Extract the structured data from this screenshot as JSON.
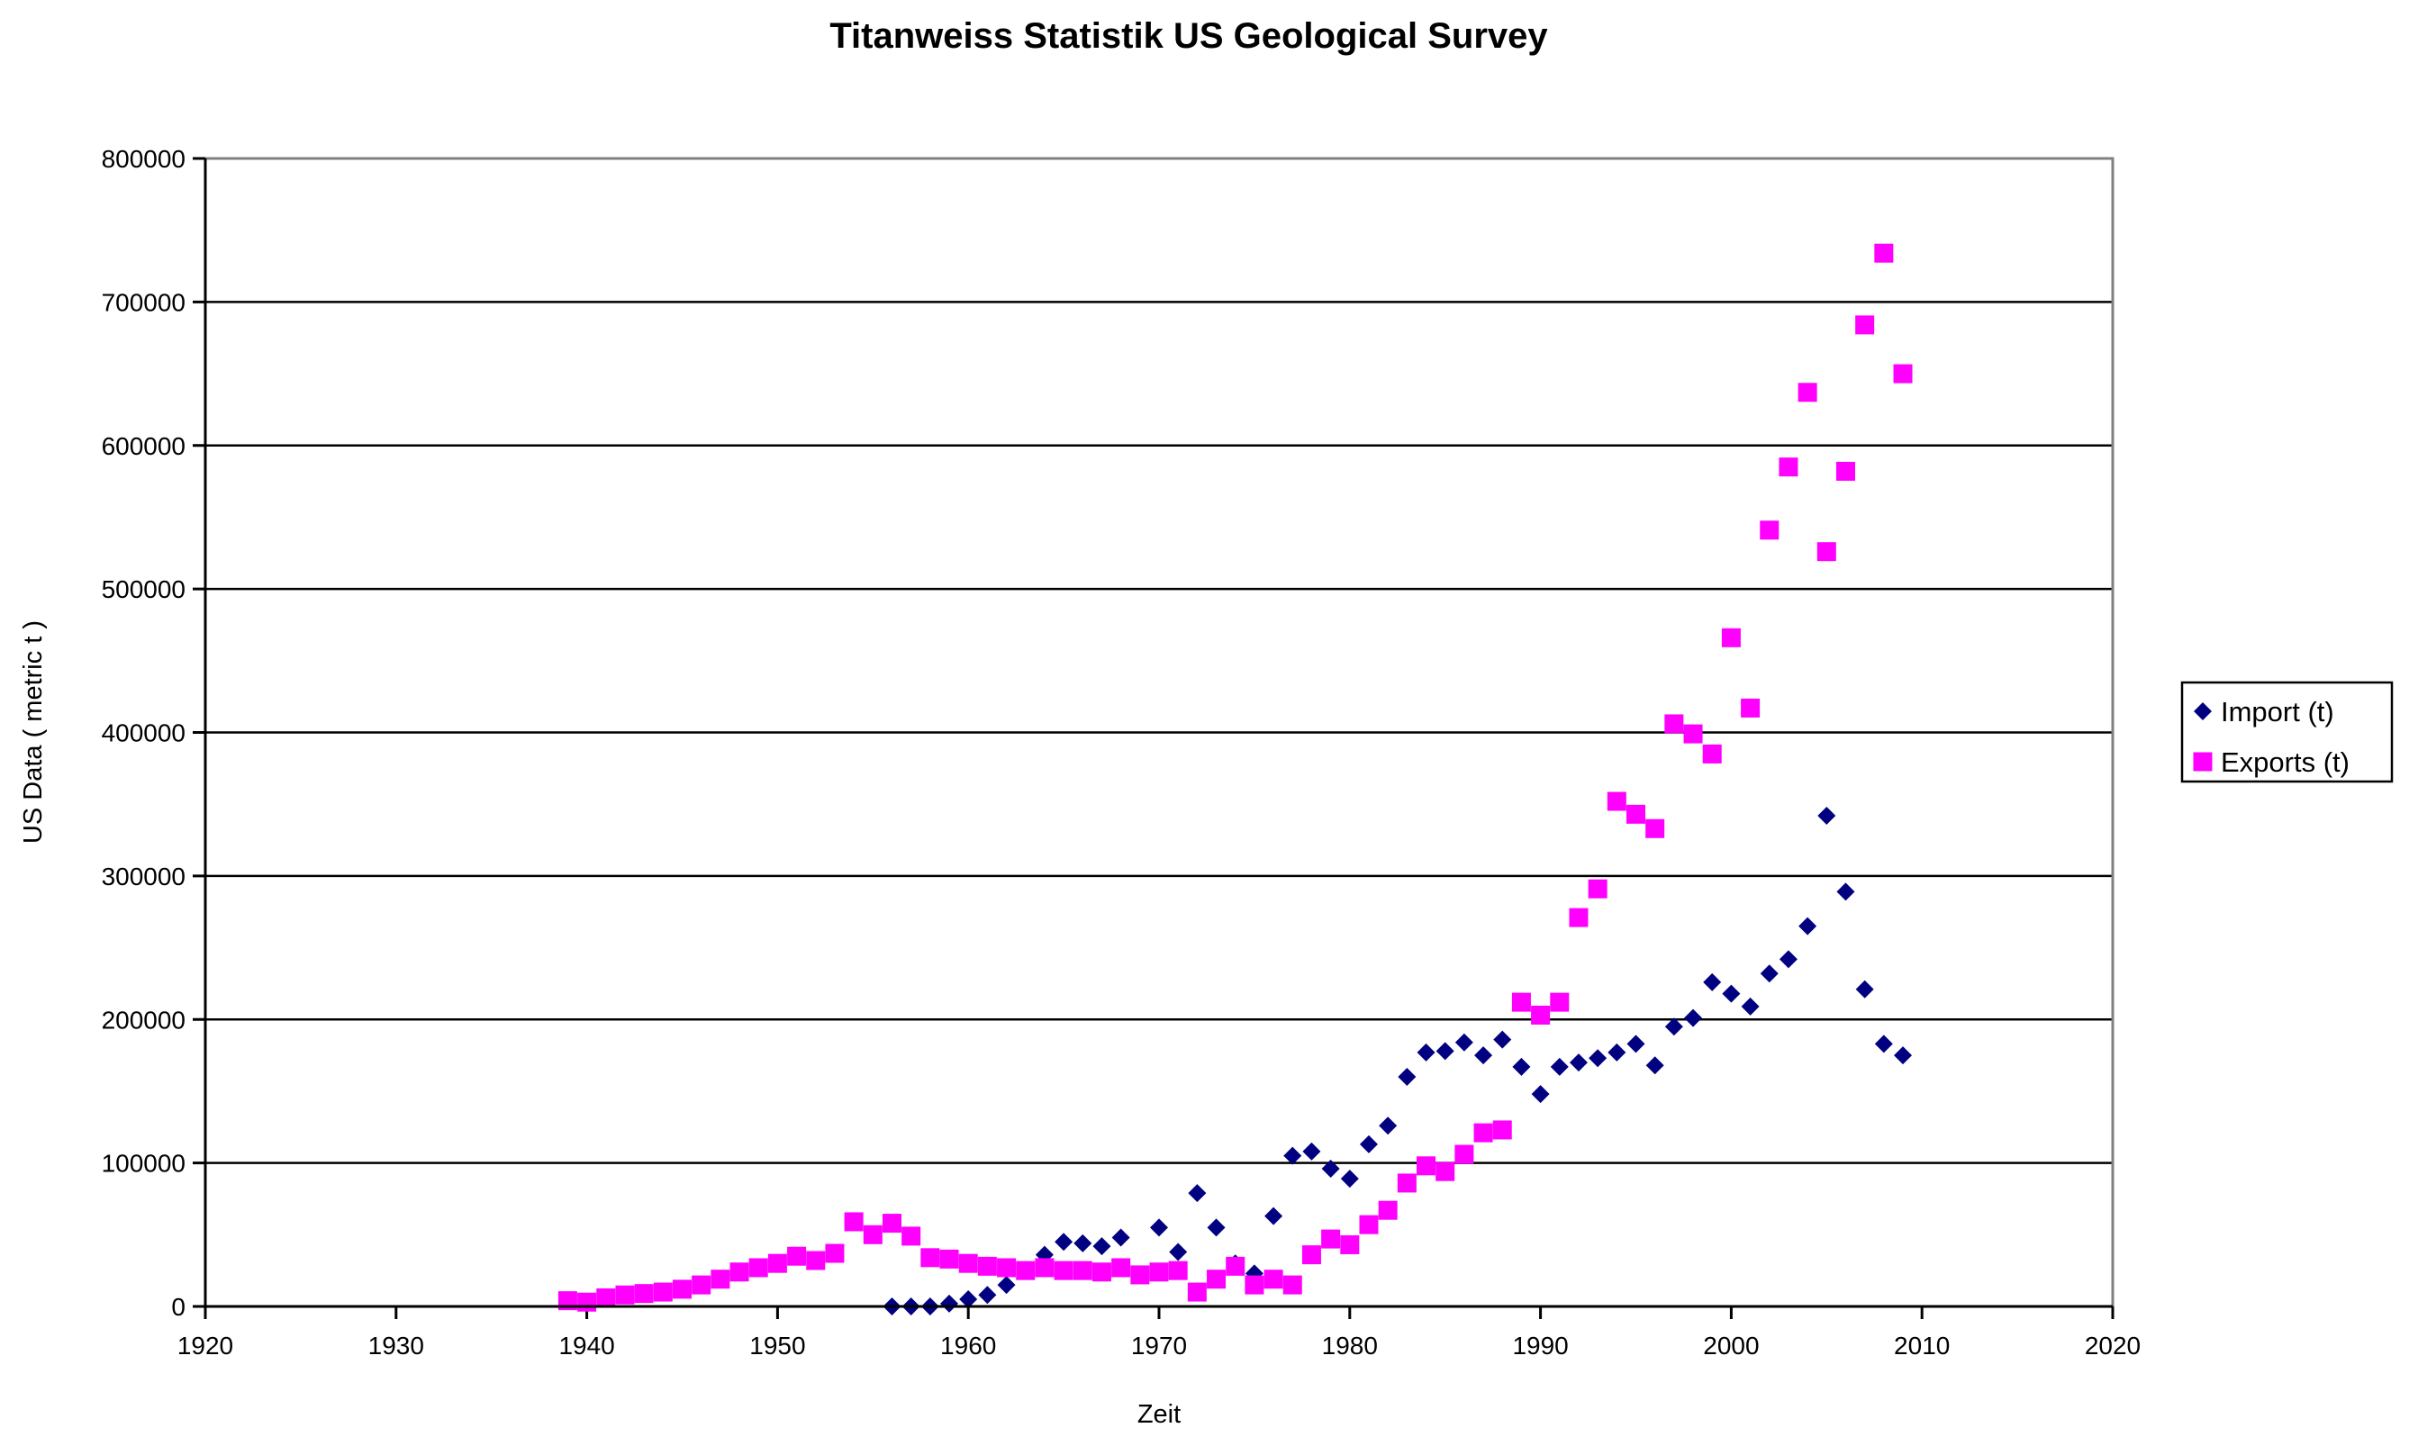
{
  "chart_data": {
    "type": "scatter",
    "title": "Titanweiss Statistik US Geological Survey",
    "xlabel": "Zeit",
    "ylabel": "US Data ( metric t )",
    "xlim": [
      1920,
      2020
    ],
    "ylim": [
      0,
      800000
    ],
    "x_ticks": [
      1920,
      1930,
      1940,
      1950,
      1960,
      1970,
      1980,
      1990,
      2000,
      2010,
      2020
    ],
    "y_ticks": [
      0,
      100000,
      200000,
      300000,
      400000,
      500000,
      600000,
      700000,
      800000
    ],
    "grid": "horizontal",
    "legend_position": "right",
    "series": [
      {
        "name": "Import (t)",
        "marker": "diamond",
        "color": "#000080",
        "points": [
          [
            1956,
            0
          ],
          [
            1957,
            0
          ],
          [
            1958,
            0
          ],
          [
            1959,
            2000
          ],
          [
            1960,
            5000
          ],
          [
            1961,
            8000
          ],
          [
            1962,
            15000
          ],
          [
            1963,
            25000
          ],
          [
            1964,
            36000
          ],
          [
            1965,
            45000
          ],
          [
            1966,
            44000
          ],
          [
            1967,
            42000
          ],
          [
            1968,
            48000
          ],
          [
            1970,
            55000
          ],
          [
            1971,
            38000
          ],
          [
            1972,
            79000
          ],
          [
            1973,
            55000
          ],
          [
            1974,
            30000
          ],
          [
            1975,
            23000
          ],
          [
            1976,
            63000
          ],
          [
            1977,
            105000
          ],
          [
            1978,
            108000
          ],
          [
            1979,
            96000
          ],
          [
            1980,
            89000
          ],
          [
            1981,
            113000
          ],
          [
            1982,
            126000
          ],
          [
            1983,
            160000
          ],
          [
            1984,
            177000
          ],
          [
            1985,
            178000
          ],
          [
            1986,
            184000
          ],
          [
            1987,
            175000
          ],
          [
            1988,
            186000
          ],
          [
            1989,
            167000
          ],
          [
            1990,
            148000
          ],
          [
            1991,
            167000
          ],
          [
            1992,
            170000
          ],
          [
            1993,
            173000
          ],
          [
            1994,
            177000
          ],
          [
            1995,
            183000
          ],
          [
            1996,
            168000
          ],
          [
            1997,
            195000
          ],
          [
            1998,
            201000
          ],
          [
            1999,
            226000
          ],
          [
            2000,
            218000
          ],
          [
            2001,
            209000
          ],
          [
            2002,
            232000
          ],
          [
            2003,
            242000
          ],
          [
            2004,
            265000
          ],
          [
            2005,
            342000
          ],
          [
            2006,
            289000
          ],
          [
            2007,
            221000
          ],
          [
            2008,
            183000
          ],
          [
            2009,
            175000
          ]
        ]
      },
      {
        "name": "Exports (t)",
        "marker": "square",
        "color": "#FF00FF",
        "points": [
          [
            1939,
            4000
          ],
          [
            1940,
            3000
          ],
          [
            1941,
            6000
          ],
          [
            1942,
            8000
          ],
          [
            1943,
            9000
          ],
          [
            1944,
            10000
          ],
          [
            1945,
            12000
          ],
          [
            1946,
            15000
          ],
          [
            1947,
            19000
          ],
          [
            1948,
            24000
          ],
          [
            1949,
            27000
          ],
          [
            1950,
            30000
          ],
          [
            1951,
            35000
          ],
          [
            1952,
            32000
          ],
          [
            1953,
            37000
          ],
          [
            1954,
            59000
          ],
          [
            1955,
            50000
          ],
          [
            1956,
            58000
          ],
          [
            1957,
            49000
          ],
          [
            1958,
            34000
          ],
          [
            1959,
            33000
          ],
          [
            1960,
            30000
          ],
          [
            1961,
            28000
          ],
          [
            1962,
            27000
          ],
          [
            1963,
            25000
          ],
          [
            1964,
            27000
          ],
          [
            1965,
            25000
          ],
          [
            1966,
            25000
          ],
          [
            1967,
            24000
          ],
          [
            1968,
            27000
          ],
          [
            1969,
            22000
          ],
          [
            1970,
            24000
          ],
          [
            1971,
            25000
          ],
          [
            1972,
            10000
          ],
          [
            1973,
            19000
          ],
          [
            1974,
            28000
          ],
          [
            1975,
            15000
          ],
          [
            1976,
            19000
          ],
          [
            1977,
            15000
          ],
          [
            1978,
            36000
          ],
          [
            1979,
            47000
          ],
          [
            1980,
            43000
          ],
          [
            1981,
            57000
          ],
          [
            1982,
            67000
          ],
          [
            1983,
            86000
          ],
          [
            1984,
            98000
          ],
          [
            1985,
            94000
          ],
          [
            1986,
            106000
          ],
          [
            1987,
            121000
          ],
          [
            1988,
            123000
          ],
          [
            1989,
            212000
          ],
          [
            1990,
            203000
          ],
          [
            1991,
            212000
          ],
          [
            1992,
            271000
          ],
          [
            1993,
            291000
          ],
          [
            1994,
            352000
          ],
          [
            1995,
            343000
          ],
          [
            1996,
            333000
          ],
          [
            1997,
            406000
          ],
          [
            1998,
            399000
          ],
          [
            1999,
            385000
          ],
          [
            2000,
            466000
          ],
          [
            2001,
            417000
          ],
          [
            2002,
            541000
          ],
          [
            2003,
            585000
          ],
          [
            2004,
            637000
          ],
          [
            2005,
            526000
          ],
          [
            2006,
            582000
          ],
          [
            2007,
            684000
          ],
          [
            2008,
            734000
          ],
          [
            2009,
            650000
          ]
        ]
      }
    ]
  }
}
